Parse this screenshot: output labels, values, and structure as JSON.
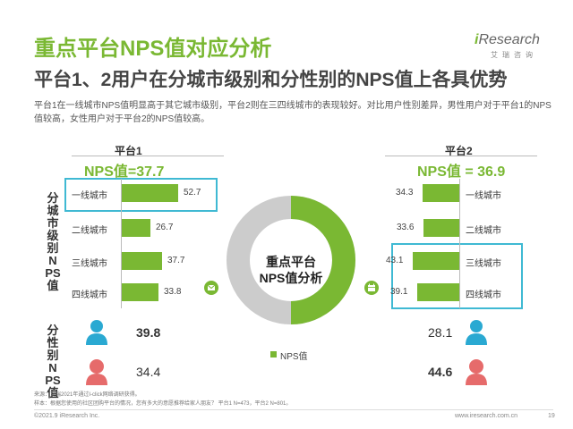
{
  "header": {
    "title": "重点平台NPS值对应分析",
    "subtitle": "平台1、2用户在分城市级别和分性别的NPS值上各具优势",
    "logo_text": "Research",
    "logo_i": "i",
    "logo_sub": "艾瑞咨询"
  },
  "description": "平台1在一线城市NPS值明显高于其它城市级别，平台2则在三四线城市的表现较好。对比用户性别差异，男性用户对于平台1的NPS值较高，女性用户对于平台2的NPS值较高。",
  "side_labels": {
    "city": "分城市级别NPS值",
    "gender": "分性别NPS值"
  },
  "center": {
    "label": "重点平台NPS值分析",
    "legend": "NPS值"
  },
  "footer": {
    "source": "来源：艾瑞2021年通过I-click网络调研获得。",
    "sample": "样本：根据您使用的社区团购平台的情况，您有多大的意愿推荐给家人朋友？ 平台1 N=473，平台2 N=801。",
    "copyright": "©2021.9 iResearch Inc.",
    "website": "www.iresearch.com.cn",
    "page": "19"
  },
  "colors": {
    "accent": "#7ab833",
    "highlight": "#3fb9d3",
    "male": "#2aa9d2",
    "female": "#e66b6b"
  },
  "chart_data": [
    {
      "type": "bar",
      "name": "平台1",
      "nps_label": "NPS值=37.7",
      "categories": [
        "一线城市",
        "二线城市",
        "三线城市",
        "四线城市"
      ],
      "values": [
        52.7,
        26.7,
        37.7,
        33.8
      ],
      "highlight": [
        "一线城市"
      ],
      "gender": {
        "male": 39.8,
        "female": 34.4
      }
    },
    {
      "type": "bar",
      "name": "平台2",
      "nps_label": "NPS值 = 36.9",
      "categories": [
        "一线城市",
        "二线城市",
        "三线城市",
        "四线城市"
      ],
      "values": [
        34.3,
        33.6,
        43.1,
        39.1
      ],
      "highlight": [
        "三线城市",
        "四线城市"
      ],
      "gender": {
        "male": 28.1,
        "female": 44.6
      }
    },
    {
      "type": "pie",
      "slices": [
        {
          "label": "NPS值",
          "value": 1
        }
      ]
    }
  ]
}
